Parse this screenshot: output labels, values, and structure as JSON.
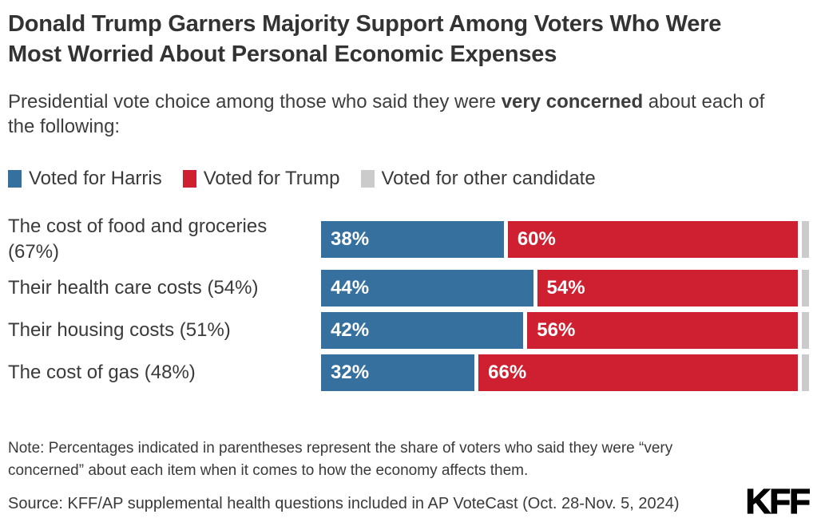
{
  "header": {
    "title": "Donald Trump Garners Majority Support Among Voters Who Were Most Worried About Personal Economic Expenses",
    "subtitle_prefix": "Presidential vote choice among those who said they were ",
    "subtitle_bold": "very concerned",
    "subtitle_suffix": " about each of the following:"
  },
  "legend": [
    {
      "label": "Voted for Harris",
      "color": "#35709F"
    },
    {
      "label": "Voted for Trump",
      "color": "#CE2030"
    },
    {
      "label": "Voted for other candidate",
      "color": "#CBCBCB"
    }
  ],
  "chart_data": {
    "type": "bar",
    "orientation": "horizontal",
    "stacked": true,
    "categories": [
      "The cost of food and groceries (67%)",
      "Their health care costs (54%)",
      "Their housing costs (51%)",
      "The cost of gas (48%)"
    ],
    "series": [
      {
        "name": "Voted for Harris",
        "color": "#35709F",
        "values": [
          38,
          44,
          42,
          32
        ],
        "labeled": true
      },
      {
        "name": "Voted for Trump",
        "color": "#CE2030",
        "values": [
          60,
          54,
          56,
          66
        ],
        "labeled": true
      },
      {
        "name": "Voted for other candidate",
        "color": "#CBCBCB",
        "values": [
          2,
          2,
          2,
          2
        ],
        "labeled": false
      }
    ],
    "value_label_format": "percent",
    "xlim": [
      0,
      100
    ],
    "grid": false,
    "legend_position": "top"
  },
  "footer": {
    "note": "Note: Percentages indicated in parentheses represent the share of voters who said they were “very concerned” about each item when it comes to how the economy affects them.",
    "source": "Source: KFF/AP supplemental health questions included in AP VoteCast (Oct. 28-Nov. 5, 2024)",
    "logo": "KFF"
  }
}
